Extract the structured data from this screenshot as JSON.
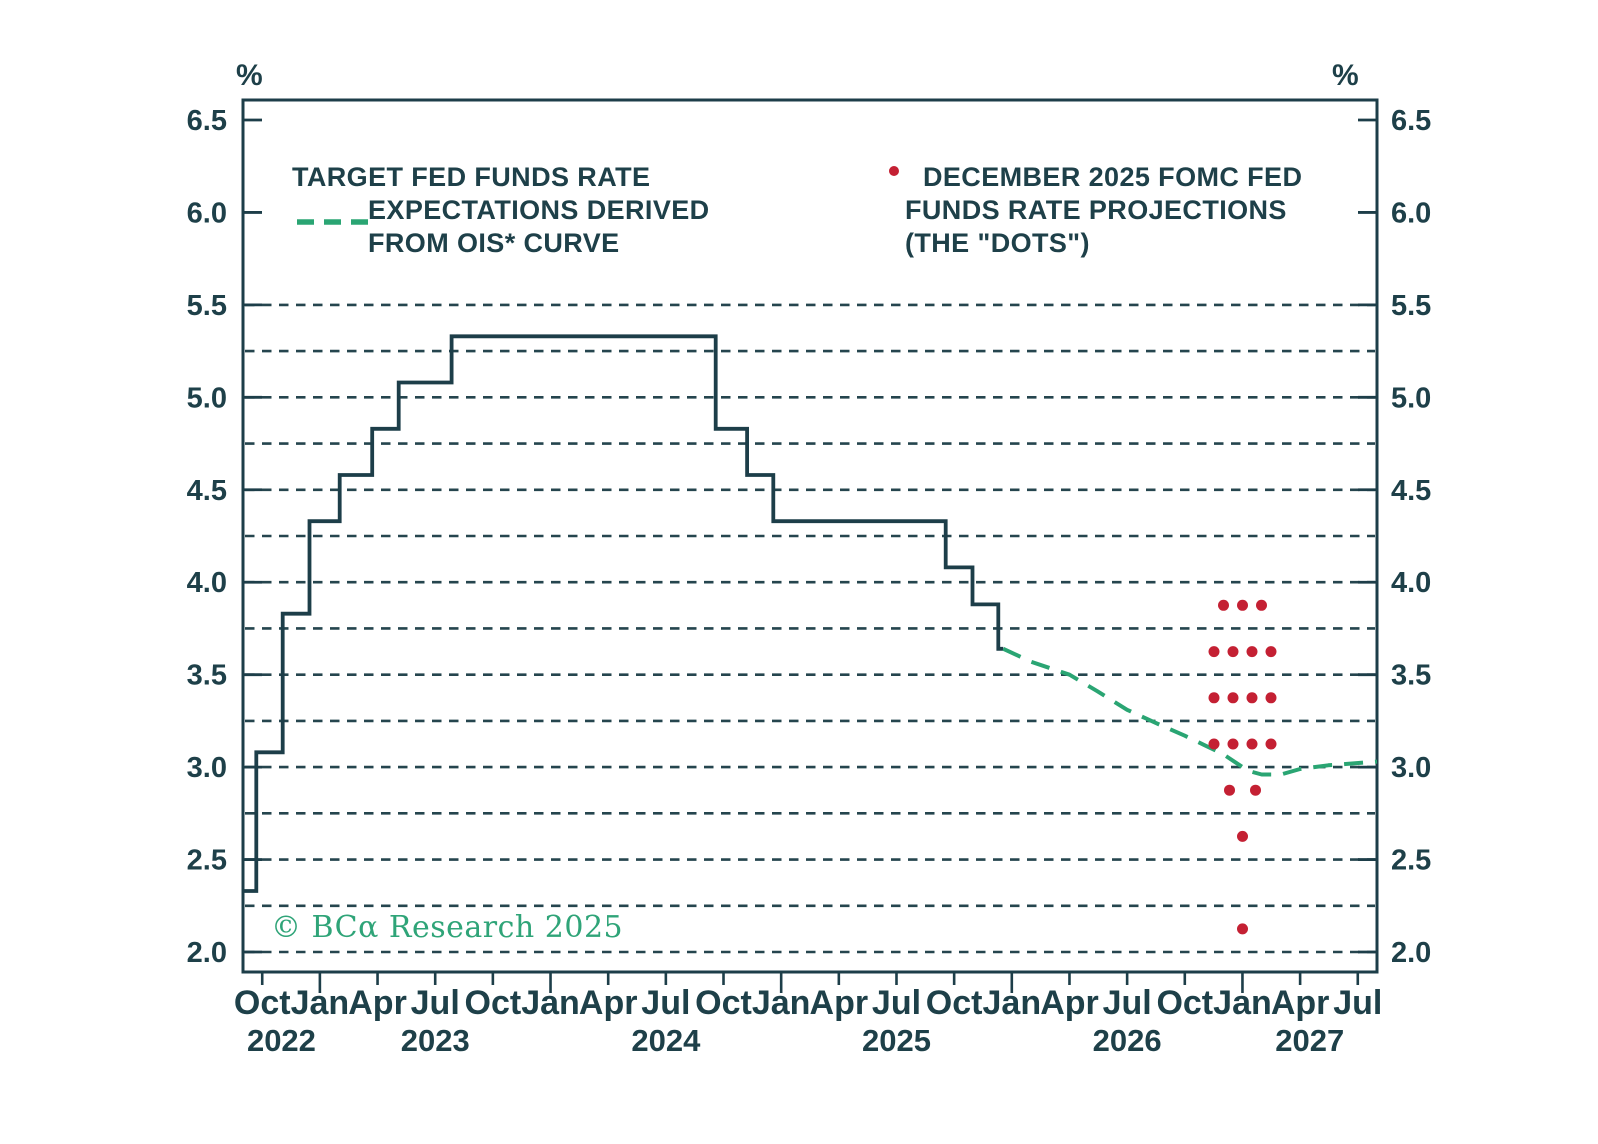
{
  "unit_left": "%",
  "unit_right": "%",
  "legend_left": {
    "line1": "TARGET FED FUNDS RATE",
    "line2": "EXPECTATIONS DERIVED",
    "line3": "FROM OIS* CURVE"
  },
  "legend_right": {
    "line1": "DECEMBER 2025 FOMC FED",
    "line2": "FUNDS RATE PROJECTIONS",
    "line3": "(THE \"DOTS\")"
  },
  "watermark": "© BCα Research 2025",
  "colors": {
    "dark": "#1d3e49",
    "grid": "#25454e",
    "green": "#2aa573",
    "red": "#c42033",
    "watermark_green": "#2fa478"
  },
  "chart_data": {
    "type": "line",
    "ylabel": "%",
    "y_axis": {
      "unit": "%",
      "tick_labels": [
        "6.5",
        "6.0",
        "5.5",
        "5.0",
        "4.5",
        "4.0",
        "3.5",
        "3.0",
        "2.5",
        "2.0"
      ],
      "tick_values": [
        6.5,
        6.0,
        5.5,
        5.0,
        4.5,
        4.0,
        3.5,
        3.0,
        2.5,
        2.0
      ],
      "ylim": [
        2.0,
        6.5
      ],
      "gridlines": {
        "min": 2.0,
        "max": 5.5,
        "step": 0.25,
        "style": "dashed"
      }
    },
    "x_axis": {
      "start": "2022-09-01",
      "end": "2027-08-01",
      "quarter_labels": [
        "Oct",
        "Jan",
        "Apr",
        "Jul",
        "Oct",
        "Jan",
        "Apr",
        "Jul",
        "Oct",
        "Jan",
        "Apr",
        "Jul",
        "Oct",
        "Jan",
        "Apr",
        "Jul",
        "Oct",
        "Jan",
        "Apr",
        "Jul"
      ],
      "first_quarter_month_offset": 1,
      "quarter_step_months": 3,
      "year_labels": [
        "2022",
        "2023",
        "2024",
        "2025",
        "2026",
        "2027"
      ]
    },
    "series": [
      {
        "name": "TARGET FED FUNDS RATE",
        "type": "step",
        "color": "#1d3e49",
        "points": [
          [
            "2022-09-01",
            2.33
          ],
          [
            "2022-09-22",
            3.08
          ],
          [
            "2022-11-03",
            3.83
          ],
          [
            "2022-12-15",
            4.33
          ],
          [
            "2023-02-02",
            4.58
          ],
          [
            "2023-03-23",
            4.83
          ],
          [
            "2023-05-04",
            5.08
          ],
          [
            "2023-07-27",
            5.33
          ],
          [
            "2024-09-19",
            4.83
          ],
          [
            "2024-11-08",
            4.58
          ],
          [
            "2024-12-19",
            4.33
          ],
          [
            "2025-09-18",
            4.08
          ],
          [
            "2025-10-30",
            3.88
          ],
          [
            "2025-12-10",
            3.64
          ]
        ],
        "end_date": "2025-12-18"
      },
      {
        "name": "EXPECTATIONS DERIVED FROM OIS* CURVE",
        "type": "dashed",
        "color": "#2aa573",
        "points": [
          [
            "2025-12-18",
            3.64
          ],
          [
            "2026-02-01",
            3.57
          ],
          [
            "2026-04-01",
            3.5
          ],
          [
            "2026-05-15",
            3.41
          ],
          [
            "2026-07-01",
            3.31
          ],
          [
            "2026-08-15",
            3.24
          ],
          [
            "2026-10-01",
            3.17
          ],
          [
            "2026-11-01",
            3.12
          ],
          [
            "2026-12-01",
            3.07
          ],
          [
            "2027-01-10",
            2.98
          ],
          [
            "2027-02-01",
            2.96
          ],
          [
            "2027-03-01",
            2.96
          ],
          [
            "2027-04-01",
            2.99
          ],
          [
            "2027-05-15",
            3.01
          ],
          [
            "2027-08-01",
            3.03
          ]
        ]
      },
      {
        "name": "DECEMBER 2025 FOMC FED FUNDS RATE PROJECTIONS (THE \"DOTS\")",
        "type": "dots",
        "color": "#c42033",
        "date": "2027-01-01",
        "rows": [
          {
            "rate": 3.875,
            "count": 3
          },
          {
            "rate": 3.625,
            "count": 4
          },
          {
            "rate": 3.375,
            "count": 4
          },
          {
            "rate": 3.125,
            "count": 4
          },
          {
            "rate": 2.875,
            "count": 2
          },
          {
            "rate": 2.625,
            "count": 1
          },
          {
            "rate": 2.125,
            "count": 1
          }
        ]
      }
    ]
  }
}
